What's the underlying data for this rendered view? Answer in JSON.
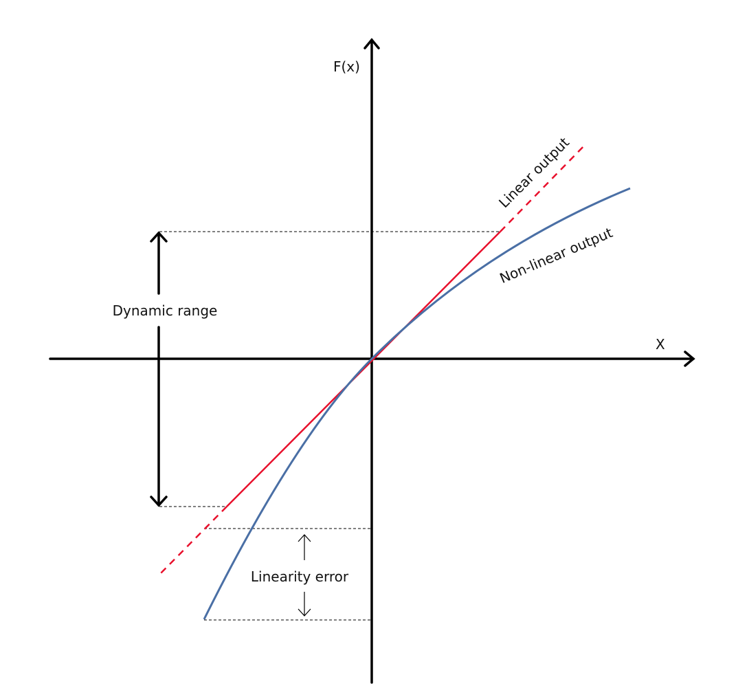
{
  "labels": {
    "y_axis": "F(x)",
    "x_axis": "X",
    "linear": "Linear output",
    "nonlinear": "Non-linear output",
    "dynamic_range": "Dynamic range",
    "linearity_error": "Linearity error"
  },
  "colors": {
    "linear": "#e8102c",
    "nonlinear": "#4a6fa5",
    "axes": "#000000"
  }
}
